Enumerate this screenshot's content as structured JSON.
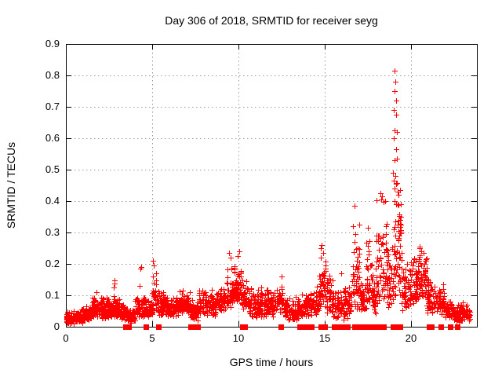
{
  "chart_data": {
    "type": "scatter",
    "title": "Day 306 of 2018, SRMTID for receiver seyg",
    "xlabel": "GPS time / hours",
    "ylabel": "SRMTID / TECUs",
    "xlim": [
      0,
      23.8
    ],
    "ylim": [
      0,
      0.9
    ],
    "x_ticks": [
      0,
      5,
      10,
      15,
      20
    ],
    "y_ticks": [
      0,
      0.1,
      0.2,
      0.3,
      0.4,
      0.5,
      0.6,
      0.7,
      0.8,
      0.9
    ],
    "grid": true,
    "legend": "none",
    "colors": {
      "points": "#ff0000",
      "grid": "#9a9a9a",
      "axis": "#000000",
      "background": "#ffffff",
      "text": "#000000"
    },
    "marker": {
      "shape": "plus",
      "size": 7
    },
    "zero_marker": {
      "shape": "filled-square",
      "size": 7
    },
    "point_bands_format": [
      "t_start_hours",
      "t_end_hours",
      "y_min_TECUs",
      "y_max_TECUs",
      "n_points"
    ],
    "point_bands": [
      [
        0.0,
        0.45,
        0.008,
        0.05,
        70
      ],
      [
        0.45,
        0.95,
        0.012,
        0.06,
        80
      ],
      [
        0.95,
        1.5,
        0.02,
        0.075,
        75
      ],
      [
        1.5,
        2.05,
        0.03,
        0.105,
        75
      ],
      [
        2.05,
        2.6,
        0.025,
        0.095,
        75
      ],
      [
        2.6,
        3.1,
        0.03,
        0.1,
        65
      ],
      [
        3.1,
        3.6,
        0.02,
        0.08,
        55
      ],
      [
        3.6,
        4.0,
        0.012,
        0.06,
        50
      ],
      [
        4.0,
        4.6,
        0.03,
        0.105,
        65
      ],
      [
        4.6,
        5.0,
        0.03,
        0.09,
        50
      ],
      [
        5.0,
        5.25,
        0.04,
        0.185,
        25
      ],
      [
        5.25,
        5.7,
        0.035,
        0.12,
        50
      ],
      [
        5.7,
        6.5,
        0.03,
        0.11,
        90
      ],
      [
        6.5,
        7.2,
        0.04,
        0.12,
        80
      ],
      [
        7.2,
        7.7,
        0.02,
        0.09,
        55
      ],
      [
        7.7,
        8.7,
        0.035,
        0.125,
        105
      ],
      [
        8.7,
        9.35,
        0.05,
        0.145,
        65
      ],
      [
        9.35,
        9.75,
        0.06,
        0.19,
        45
      ],
      [
        9.75,
        10.15,
        0.08,
        0.21,
        50
      ],
      [
        10.15,
        10.6,
        0.05,
        0.16,
        45
      ],
      [
        10.6,
        11.4,
        0.03,
        0.13,
        85
      ],
      [
        11.4,
        12.3,
        0.03,
        0.13,
        85
      ],
      [
        12.3,
        12.65,
        0.04,
        0.155,
        30
      ],
      [
        12.65,
        13.5,
        0.02,
        0.1,
        80
      ],
      [
        13.5,
        14.3,
        0.03,
        0.125,
        75
      ],
      [
        14.3,
        14.65,
        0.04,
        0.13,
        35
      ],
      [
        14.65,
        15.05,
        0.06,
        0.245,
        40
      ],
      [
        15.05,
        15.5,
        0.04,
        0.17,
        40
      ],
      [
        15.5,
        16.3,
        0.02,
        0.13,
        75
      ],
      [
        16.3,
        16.55,
        0.03,
        0.14,
        25
      ],
      [
        16.55,
        17.0,
        0.05,
        0.37,
        48
      ],
      [
        17.0,
        17.35,
        0.04,
        0.16,
        35
      ],
      [
        17.35,
        17.75,
        0.05,
        0.31,
        42
      ],
      [
        17.75,
        17.95,
        0.03,
        0.15,
        25
      ],
      [
        17.95,
        18.6,
        0.06,
        0.43,
        65
      ],
      [
        18.6,
        18.95,
        0.05,
        0.28,
        40
      ],
      [
        18.95,
        19.45,
        0.08,
        0.5,
        65
      ],
      [
        19.45,
        19.85,
        0.05,
        0.22,
        40
      ],
      [
        19.85,
        20.35,
        0.07,
        0.24,
        55
      ],
      [
        20.35,
        20.9,
        0.08,
        0.26,
        60
      ],
      [
        20.9,
        21.45,
        0.04,
        0.16,
        55
      ],
      [
        21.45,
        21.95,
        0.04,
        0.14,
        50
      ],
      [
        21.95,
        22.45,
        0.025,
        0.09,
        50
      ],
      [
        22.45,
        23.05,
        0.015,
        0.08,
        85
      ],
      [
        23.05,
        23.4,
        0.02,
        0.07,
        30
      ]
    ],
    "outlier_points": [
      [
        1.75,
        0.11
      ],
      [
        2.78,
        0.125
      ],
      [
        2.8,
        0.138
      ],
      [
        2.82,
        0.148
      ],
      [
        4.28,
        0.13
      ],
      [
        4.32,
        0.185
      ],
      [
        4.36,
        0.19
      ],
      [
        5.05,
        0.21
      ],
      [
        5.1,
        0.195
      ],
      [
        9.45,
        0.235
      ],
      [
        9.52,
        0.22
      ],
      [
        9.95,
        0.225
      ],
      [
        10.02,
        0.24
      ],
      [
        12.5,
        0.16
      ],
      [
        14.75,
        0.25
      ],
      [
        14.82,
        0.26
      ],
      [
        14.88,
        0.235
      ],
      [
        15.95,
        0.17
      ],
      [
        16.7,
        0.385
      ],
      [
        17.5,
        0.315
      ],
      [
        18.2,
        0.425
      ],
      [
        18.28,
        0.405
      ],
      [
        18.5,
        0.4
      ],
      [
        18.92,
        0.49
      ],
      [
        19.0,
        0.69
      ],
      [
        19.0,
        0.6
      ],
      [
        19.0,
        0.465
      ],
      [
        19.02,
        0.75
      ],
      [
        19.05,
        0.815
      ],
      [
        19.05,
        0.625
      ],
      [
        19.05,
        0.53
      ],
      [
        19.05,
        0.44
      ],
      [
        19.08,
        0.78
      ],
      [
        19.08,
        0.48
      ],
      [
        19.1,
        0.72
      ],
      [
        19.1,
        0.565
      ],
      [
        19.12,
        0.675
      ],
      [
        19.12,
        0.455
      ],
      [
        19.15,
        0.62
      ],
      [
        19.18,
        0.535
      ],
      [
        19.2,
        0.43
      ],
      [
        20.5,
        0.255
      ]
    ],
    "zero_marker_times": [
      3.45,
      3.55,
      3.62,
      4.65,
      5.35,
      7.2,
      7.32,
      7.62,
      10.22,
      10.35,
      12.45,
      13.55,
      13.75,
      13.92,
      14.2,
      14.75,
      14.88,
      15.0,
      15.55,
      15.65,
      15.9,
      16.0,
      16.32,
      16.72,
      16.82,
      17.05,
      17.15,
      17.45,
      17.55,
      17.78,
      17.9,
      18.05,
      18.15,
      18.28,
      18.4,
      18.95,
      19.1,
      19.35,
      21.05,
      21.15,
      21.72,
      22.25,
      22.65
    ]
  }
}
